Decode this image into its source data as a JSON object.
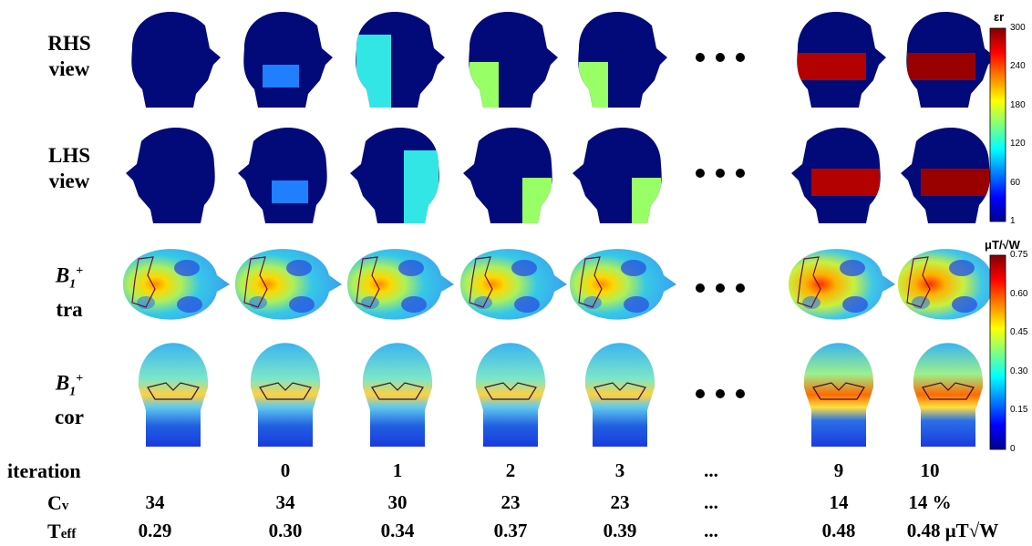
{
  "row_labels": {
    "rhs": [
      "RHS",
      "view"
    ],
    "lhs": [
      "LHS",
      "view"
    ],
    "tra": [
      "tra"
    ],
    "cor": [
      "cor"
    ]
  },
  "ellipsis": "...",
  "table": {
    "iteration": {
      "label": "iteration",
      "values": [
        "",
        "0",
        "1",
        "2",
        "3",
        "...",
        "9",
        "10"
      ]
    },
    "cv": {
      "label": "C",
      "sub": "v",
      "values": [
        "34",
        "34",
        "30",
        "23",
        "23",
        "...",
        "14",
        "14 %"
      ]
    },
    "teff": {
      "label": "T",
      "sub": "eff",
      "values": [
        "0.29",
        "0.30",
        "0.34",
        "0.37",
        "0.39",
        "...",
        "0.48",
        "0.48 μT√W"
      ]
    }
  },
  "colorbar_eps": {
    "title": "εr",
    "ticks": [
      "300",
      "240",
      "180",
      "120",
      "60",
      "1"
    ]
  },
  "colorbar_b1": {
    "title": "μT/√W",
    "ticks": [
      "0.75",
      "0.60",
      "0.45",
      "0.30",
      "0.15",
      "0"
    ]
  },
  "colors": {
    "dark_blue": "#020a7a",
    "patch": [
      "none",
      "#1f7fff",
      "#33e6e6",
      "#99ff66",
      "#99ff66",
      "#b30000",
      "#990000"
    ]
  }
}
